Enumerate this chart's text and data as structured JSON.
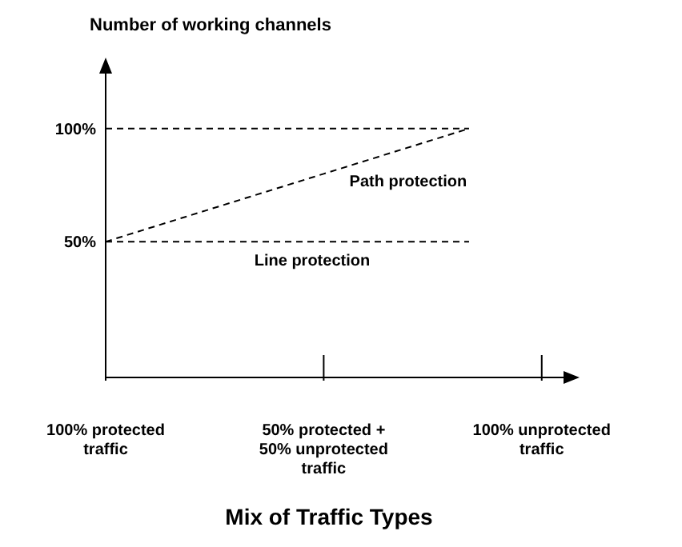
{
  "chart_data": {
    "type": "line",
    "ylabel": "Number of working channels",
    "xlabel": "Mix of Traffic Types",
    "categories": [
      "100% protected traffic",
      null,
      null,
      "50% protected + 50% unprotected traffic",
      null,
      null,
      "100% unprotected traffic"
    ],
    "ylim": [
      -10,
      125
    ],
    "yticks": [
      {
        "value": 50,
        "label": "50%"
      },
      {
        "value": 100,
        "label": "100%"
      }
    ],
    "series": [
      {
        "values": [
          100,
          100,
          100,
          100,
          100,
          100,
          null
        ],
        "color": "#000000"
      },
      {
        "name": "Path protection",
        "values": [
          50,
          60,
          70,
          80,
          90,
          100,
          null
        ],
        "color": "#000000"
      },
      {
        "name": "Line protection",
        "values": [
          50,
          50,
          50,
          50,
          50,
          50,
          null
        ],
        "color": "#000000"
      }
    ],
    "line_style": "dashed",
    "marker": "none",
    "grid": false,
    "legend": false
  }
}
